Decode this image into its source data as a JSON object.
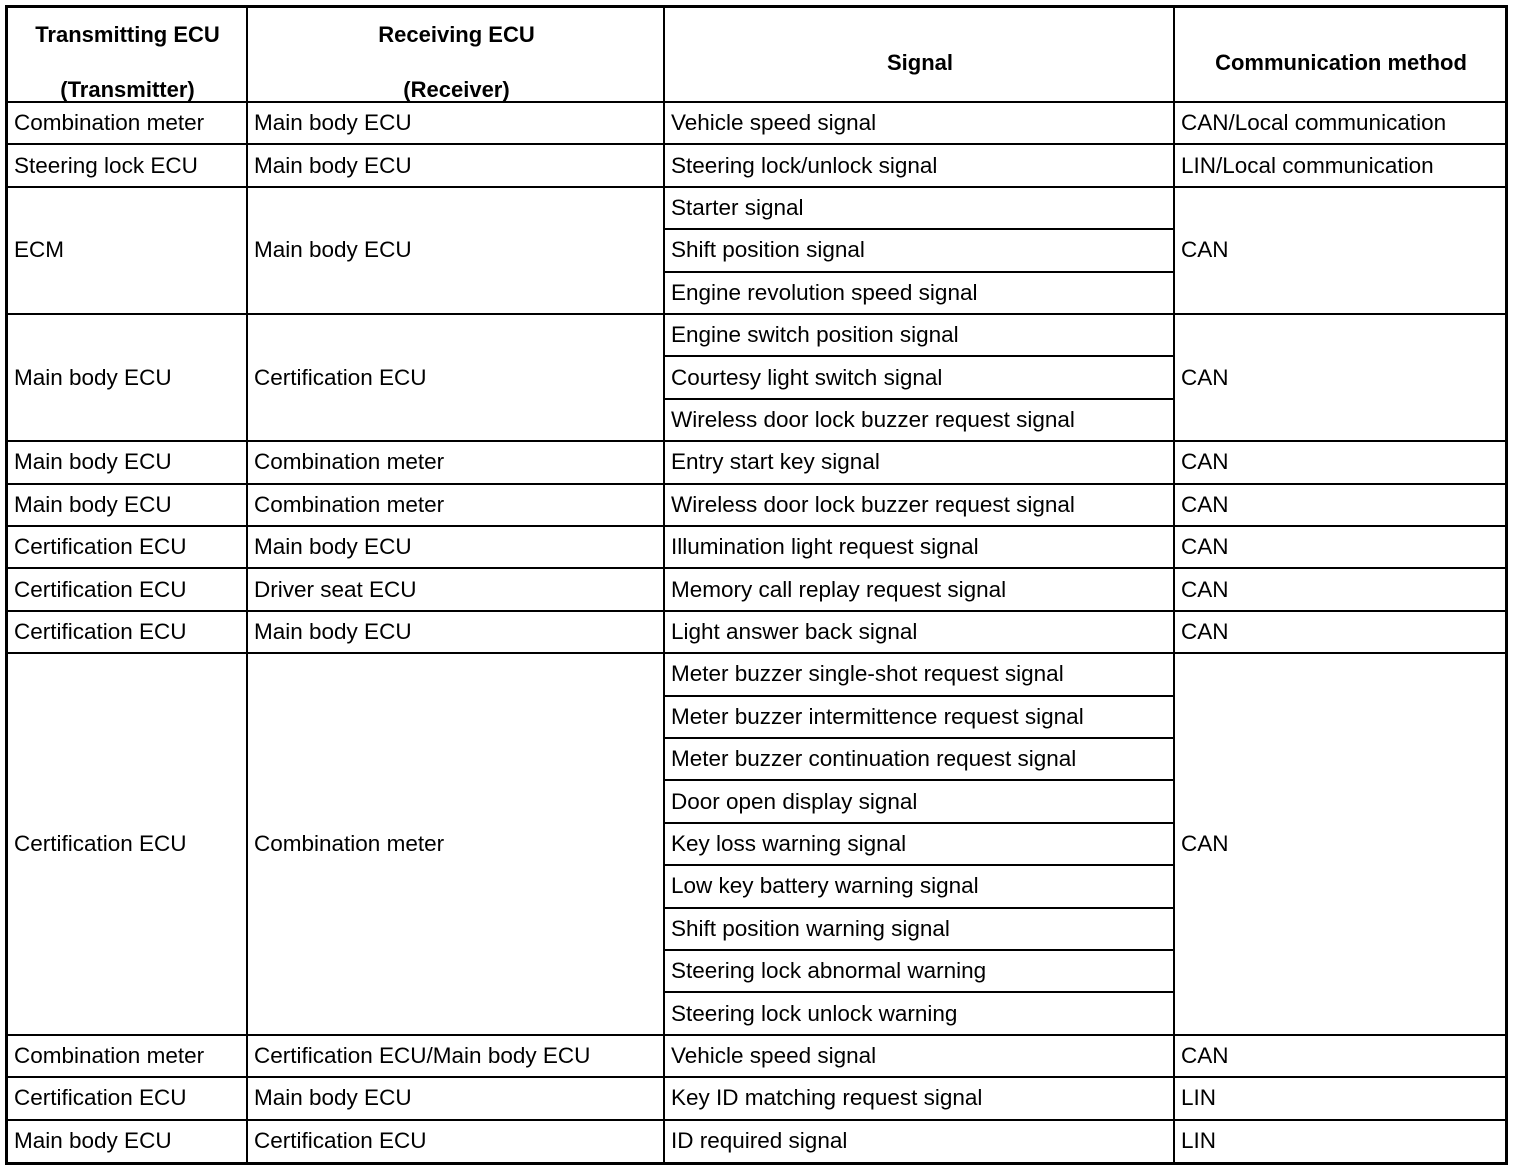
{
  "header": {
    "transmitter": [
      "Transmitting ECU",
      "(Transmitter)"
    ],
    "receiver": [
      "Receiving ECU",
      "(Receiver)"
    ],
    "signal": "Signal",
    "method": "Communication method"
  },
  "groups": [
    {
      "transmitter": "Combination meter",
      "receiver": "Main body ECU",
      "signals": [
        "Vehicle speed signal"
      ],
      "method": "CAN/Local communication"
    },
    {
      "transmitter": "Steering lock ECU",
      "receiver": "Main body ECU",
      "signals": [
        "Steering lock/unlock signal"
      ],
      "method": "LIN/Local communication"
    },
    {
      "transmitter": "ECM",
      "receiver": "Main body ECU",
      "signals": [
        "Starter signal",
        "Shift position signal",
        "Engine revolution speed signal"
      ],
      "method": "CAN"
    },
    {
      "transmitter": "Main body ECU",
      "receiver": "Certification ECU",
      "signals": [
        "Engine switch position signal",
        "Courtesy light switch signal",
        "Wireless door lock buzzer request signal"
      ],
      "method": "CAN"
    },
    {
      "transmitter": "Main body ECU",
      "receiver": "Combination meter",
      "signals": [
        "Entry start key signal"
      ],
      "method": "CAN"
    },
    {
      "transmitter": "Main body ECU",
      "receiver": "Combination meter",
      "signals": [
        "Wireless door lock buzzer request signal"
      ],
      "method": "CAN"
    },
    {
      "transmitter": "Certification ECU",
      "receiver": "Main body ECU",
      "signals": [
        "Illumination light request signal"
      ],
      "method": "CAN"
    },
    {
      "transmitter": "Certification ECU",
      "receiver": "Driver seat ECU",
      "signals": [
        "Memory call replay request signal"
      ],
      "method": "CAN"
    },
    {
      "transmitter": "Certification ECU",
      "receiver": "Main body ECU",
      "signals": [
        "Light answer back signal"
      ],
      "method": "CAN"
    },
    {
      "transmitter": "Certification ECU",
      "receiver": "Combination meter",
      "signals": [
        "Meter buzzer single-shot request signal",
        "Meter buzzer intermittence request signal",
        "Meter buzzer continuation request signal",
        "Door open display signal",
        "Key loss warning signal",
        "Low key battery warning signal",
        "Shift position warning signal",
        "Steering lock abnormal warning",
        "Steering lock unlock warning"
      ],
      "method": "CAN"
    },
    {
      "transmitter": "Combination meter",
      "receiver": "Certification ECU/Main body ECU",
      "signals": [
        "Vehicle speed signal"
      ],
      "method": "CAN"
    },
    {
      "transmitter": "Certification ECU",
      "receiver": "Main body ECU",
      "signals": [
        "Key ID matching request signal"
      ],
      "method": "LIN"
    },
    {
      "transmitter": "Main body ECU",
      "receiver": "Certification ECU",
      "signals": [
        "ID required signal"
      ],
      "method": "LIN"
    }
  ]
}
